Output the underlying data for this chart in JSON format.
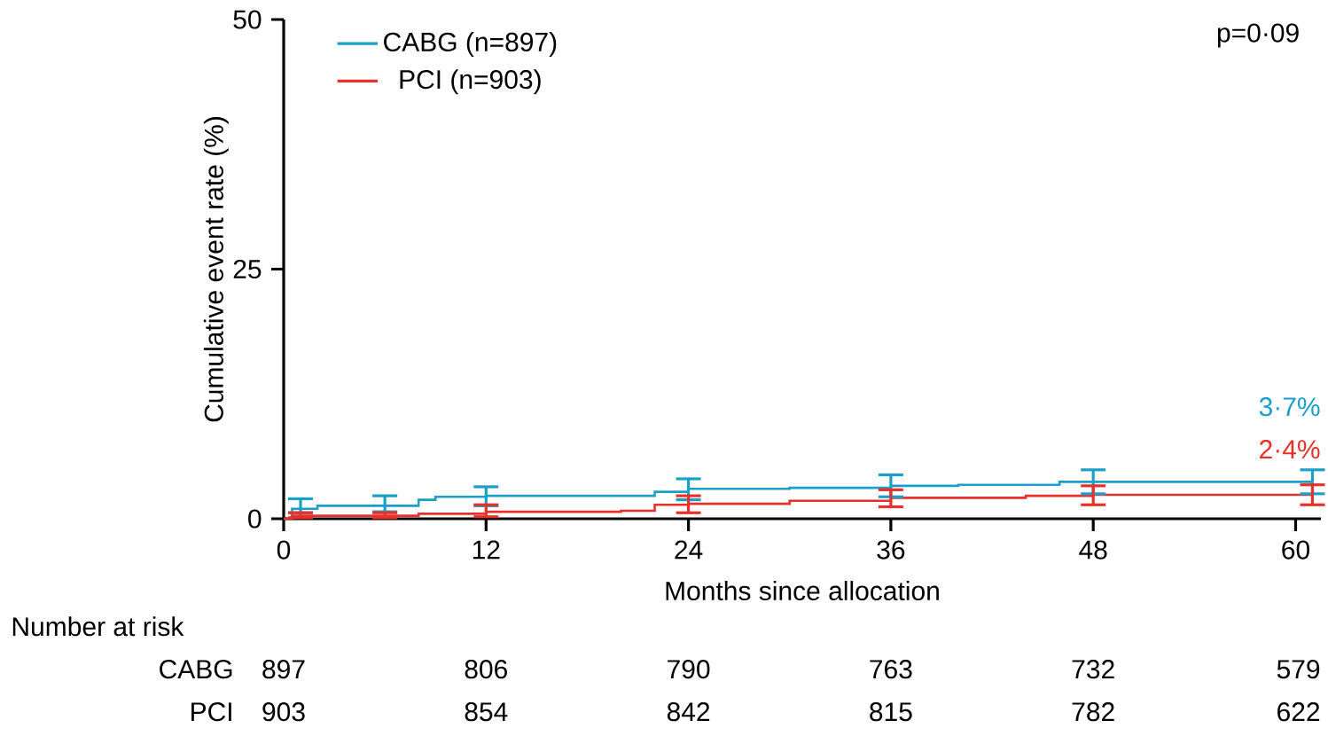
{
  "chart_data": {
    "type": "step",
    "xlabel": "Months since allocation",
    "ylabel": "Cumulative event rate (%)",
    "xlim": [
      0,
      61.5
    ],
    "xticks": [
      0,
      12,
      24,
      36,
      48,
      60
    ],
    "ylim": [
      0,
      50
    ],
    "yticks": [
      0,
      25,
      50
    ],
    "grid": false,
    "legend": "top left",
    "marker": "none",
    "line_style": "solid",
    "series": [
      {
        "name": "CABG (n=897)",
        "color": "#1aa0c8",
        "x": [
          0,
          0.5,
          1,
          2,
          6,
          8,
          9,
          12,
          22,
          24,
          30,
          36,
          40,
          46,
          48,
          61
        ],
        "values": [
          0,
          1.0,
          1.0,
          1.3,
          1.3,
          1.9,
          2.2,
          2.3,
          2.7,
          3.0,
          3.1,
          3.3,
          3.4,
          3.7,
          3.7,
          3.7
        ],
        "errors": [
          null,
          null,
          [
            0.6,
            2.0
          ],
          null,
          [
            0.7,
            2.3
          ],
          null,
          null,
          [
            1.3,
            3.2
          ],
          null,
          [
            1.9,
            4.0
          ],
          null,
          [
            2.2,
            4.4
          ],
          null,
          null,
          [
            2.5,
            4.9
          ],
          [
            2.5,
            4.9
          ]
        ]
      },
      {
        "name": "PCI (n=903)",
        "color": "#e8302a",
        "x": [
          0,
          0.5,
          1,
          6,
          8,
          12,
          20,
          22,
          24,
          30,
          36,
          44,
          48,
          61
        ],
        "values": [
          0,
          0.3,
          0.3,
          0.3,
          0.5,
          0.7,
          0.8,
          1.4,
          1.5,
          1.8,
          2.1,
          2.3,
          2.4,
          2.4
        ],
        "errors": [
          null,
          null,
          [
            0.1,
            0.6
          ],
          [
            0.1,
            0.6
          ],
          null,
          [
            0.2,
            1.4
          ],
          null,
          null,
          [
            0.6,
            2.3
          ],
          null,
          [
            1.2,
            2.9
          ],
          null,
          [
            1.4,
            3.3
          ],
          [
            1.4,
            3.4
          ]
        ]
      }
    ],
    "annotations": [
      "p=0·09",
      "3·7%",
      "2·4%",
      "Number at risk",
      "CABG",
      "PCI",
      "897",
      "806",
      "790",
      "763",
      "732",
      "579",
      "903",
      "854",
      "842",
      "815",
      "782",
      "622"
    ]
  }
}
